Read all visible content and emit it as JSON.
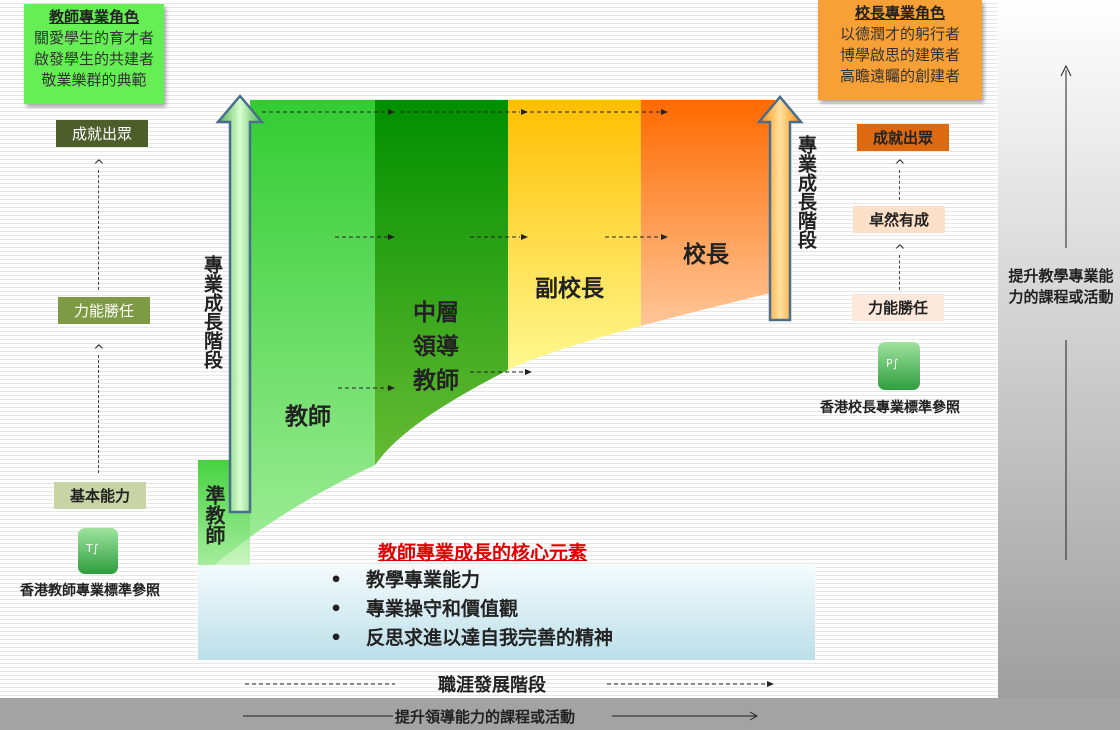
{
  "teacher_role": {
    "title": "教師專業角色",
    "lines": [
      "關愛學生的育才者",
      "啟發學生的共建者",
      "敬業樂群的典範"
    ]
  },
  "principal_role": {
    "title": "校長專業角色",
    "lines": [
      "以德潤才的躬行者",
      "博學啟思的建策者",
      "高瞻遠矚的創建者"
    ]
  },
  "teacher_levels": [
    "成就出眾",
    "力能勝任",
    "基本能力"
  ],
  "principal_levels": [
    "成就出眾",
    "卓然有成",
    "力能勝任"
  ],
  "teacher_standard": "香港教師專業標準參照",
  "principal_standard": "香港校長專業標準參照",
  "growth_stage_label": "專業成長階段",
  "stages": {
    "pre_teacher": "準教師",
    "teacher": "教師",
    "middle": "中層領導教師",
    "vice": "副校長",
    "principal": "校長"
  },
  "core": {
    "title": "教師專業成長的核心元素",
    "items": [
      "教學專業能力",
      "專業操守和價值觀",
      "反思求進以達自我完善的精神"
    ]
  },
  "career_label": "職涯發展階段",
  "leadership_label": "提升領導能力的課程或活動",
  "teaching_label": "提升教學專業能力的課程或活動",
  "colors": {
    "teacher_green": "#33cc33",
    "middle_green": "#009900",
    "vice_yellow": "#ffc000",
    "principal_orange": "#ff6600",
    "core_title": "#e00000"
  }
}
